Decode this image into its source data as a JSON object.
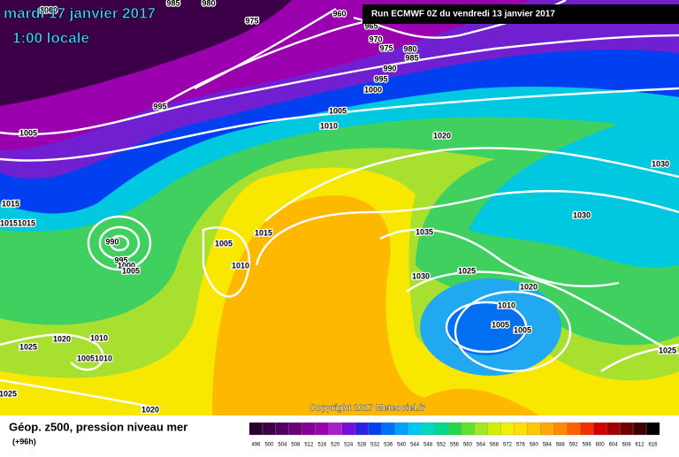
{
  "header": {
    "date": "mardi 17 janvier 2017",
    "time": "1:00 locale",
    "run": "Run ECMWF 0Z du vendredi 13 janvier 2017"
  },
  "footer": {
    "title": "Géop. z500, pression niveau mer",
    "lead": "(+96h)",
    "copyright": "Copyright 2017 Meteociel.fr"
  },
  "isobar_labels": [
    1000,
    985,
    980,
    975,
    960,
    965,
    970,
    975,
    980,
    985,
    990,
    995,
    1000,
    995,
    1005,
    1010,
    1005,
    1020,
    1030,
    1015,
    1015,
    1015,
    990,
    1005,
    1015,
    1035,
    1030,
    995,
    1000,
    1005,
    1010,
    1025,
    1030,
    1020,
    1010,
    1005,
    1005,
    1020,
    1010,
    1025,
    1005,
    1010,
    1025,
    1025,
    1020
  ],
  "scale": {
    "values": [
      496,
      500,
      504,
      508,
      512,
      516,
      520,
      524,
      528,
      532,
      536,
      540,
      544,
      548,
      552,
      556,
      560,
      564,
      568,
      572,
      576,
      580,
      584,
      588,
      592,
      596,
      600,
      604,
      608,
      612,
      616
    ],
    "colors": [
      "#2a0030",
      "#3c0048",
      "#520060",
      "#6a007a",
      "#820094",
      "#9a00ae",
      "#a820c8",
      "#7010d8",
      "#3020e0",
      "#0040f0",
      "#0070f8",
      "#00a0ff",
      "#00c8f0",
      "#00d8c0",
      "#00d890",
      "#20d850",
      "#60e030",
      "#a0e820",
      "#d0f000",
      "#f0f000",
      "#ffe000",
      "#ffc800",
      "#ffa800",
      "#ff8800",
      "#ff6000",
      "#f03000",
      "#d00000",
      "#a00000",
      "#700000",
      "#400000",
      "#000000"
    ]
  }
}
